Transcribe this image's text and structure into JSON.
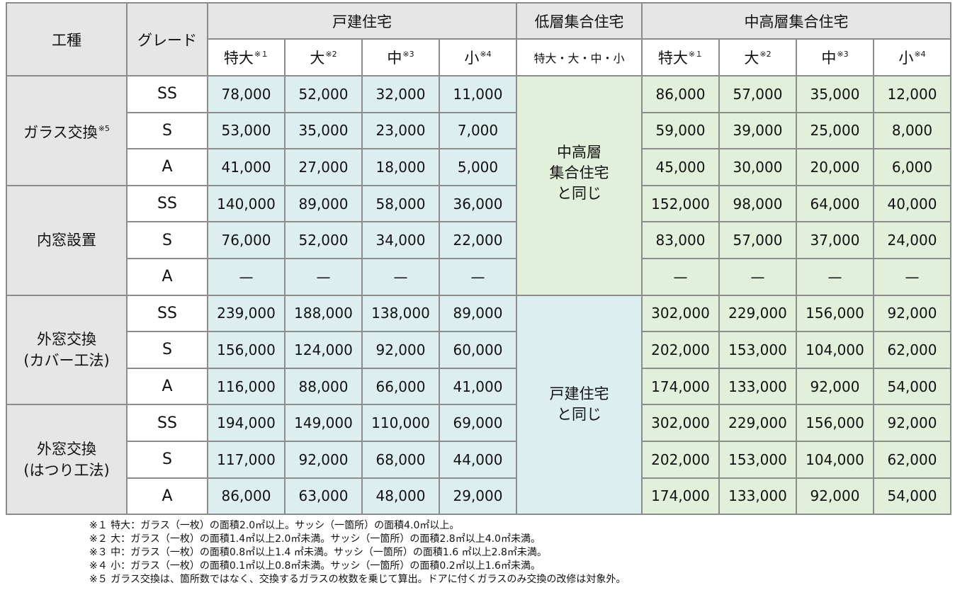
{
  "header": {
    "work_type": "工種",
    "grade": "グレード",
    "detached": "戸建住宅",
    "low_rise": "低層集合住宅",
    "mid_high_rise": "中高層集合住宅",
    "sizes": [
      {
        "label": "特大",
        "mark": "※１"
      },
      {
        "label": "大",
        "mark": "※2"
      },
      {
        "label": "中",
        "mark": "※3"
      },
      {
        "label": "小",
        "mark": "※4"
      }
    ],
    "low_rise_sizes": "特大・大・中・小"
  },
  "groups": [
    {
      "name": "ガラス交換",
      "mark": "※5",
      "rows": [
        {
          "grade": "SS",
          "detached": [
            "78,000",
            "52,000",
            "32,000",
            "11,000"
          ],
          "mid_high": [
            "86,000",
            "57,000",
            "35,000",
            "12,000"
          ]
        },
        {
          "grade": "S",
          "detached": [
            "53,000",
            "35,000",
            "23,000",
            "7,000"
          ],
          "mid_high": [
            "59,000",
            "39,000",
            "25,000",
            "8,000"
          ]
        },
        {
          "grade": "A",
          "detached": [
            "41,000",
            "27,000",
            "18,000",
            "5,000"
          ],
          "mid_high": [
            "45,000",
            "30,000",
            "20,000",
            "6,000"
          ]
        }
      ]
    },
    {
      "name": "内窓設置",
      "mark": "",
      "rows": [
        {
          "grade": "SS",
          "detached": [
            "140,000",
            "89,000",
            "58,000",
            "36,000"
          ],
          "mid_high": [
            "152,000",
            "98,000",
            "64,000",
            "40,000"
          ]
        },
        {
          "grade": "S",
          "detached": [
            "76,000",
            "52,000",
            "34,000",
            "22,000"
          ],
          "mid_high": [
            "83,000",
            "57,000",
            "37,000",
            "24,000"
          ]
        },
        {
          "grade": "A",
          "detached": [
            "—",
            "—",
            "—",
            "—"
          ],
          "mid_high": [
            "—",
            "—",
            "—",
            "—"
          ]
        }
      ]
    },
    {
      "name_line1": "外窓交換",
      "name_line2": "(カバー工法)",
      "rows": [
        {
          "grade": "SS",
          "detached": [
            "239,000",
            "188,000",
            "138,000",
            "89,000"
          ],
          "mid_high": [
            "302,000",
            "229,000",
            "156,000",
            "92,000"
          ]
        },
        {
          "grade": "S",
          "detached": [
            "156,000",
            "124,000",
            "92,000",
            "60,000"
          ],
          "mid_high": [
            "202,000",
            "153,000",
            "104,000",
            "62,000"
          ]
        },
        {
          "grade": "A",
          "detached": [
            "116,000",
            "88,000",
            "66,000",
            "41,000"
          ],
          "mid_high": [
            "174,000",
            "133,000",
            "92,000",
            "54,000"
          ]
        }
      ]
    },
    {
      "name_line1": "外窓交換",
      "name_line2": "(はつり工法)",
      "rows": [
        {
          "grade": "SS",
          "detached": [
            "194,000",
            "149,000",
            "110,000",
            "69,000"
          ],
          "mid_high": [
            "302,000",
            "229,000",
            "156,000",
            "92,000"
          ]
        },
        {
          "grade": "S",
          "detached": [
            "117,000",
            "92,000",
            "68,000",
            "44,000"
          ],
          "mid_high": [
            "202,000",
            "153,000",
            "104,000",
            "62,000"
          ]
        },
        {
          "grade": "A",
          "detached": [
            "86,000",
            "63,000",
            "48,000",
            "29,000"
          ],
          "mid_high": [
            "174,000",
            "133,000",
            "92,000",
            "54,000"
          ]
        }
      ]
    }
  ],
  "low_rise_notes": {
    "same_as_mid_high": [
      "中高層",
      "集合住宅",
      "と同じ"
    ],
    "same_as_detached": [
      "戸建住宅",
      "と同じ"
    ]
  },
  "colors": {
    "header_gray": "#e7e6e6",
    "detached_blue": "#ddeef1",
    "mid_high_green": "#e2efda",
    "border": "#8c8c8c"
  },
  "footnotes": [
    "※１ 特大：ガラス（一枚）の面積2.0㎡以上。サッシ（一箇所）の面積4.0㎡以上。",
    "※２ 大：ガラス（一枚）の面積1.4㎡以上2.0㎡未満。サッシ（一箇所）の面積2.8㎡以上4.0㎡未満。",
    "※３ 中：ガラス（一枚）の面積0.8㎡以上1.4 ㎡未満。サッシ（一箇所）の面積1.6 ㎡以上2.8㎡未満。",
    "※４ 小：ガラス（一枚）の面積0.1㎡以上0.8㎡未満。サッシ（一箇所）の面積0.2㎡以上1.6㎡未満。",
    "※５ ガラス交換は、箇所数ではなく、交換するガラスの枚数を乗じて算出。ドアに付くガラスのみ交換の改修は対象外。"
  ]
}
